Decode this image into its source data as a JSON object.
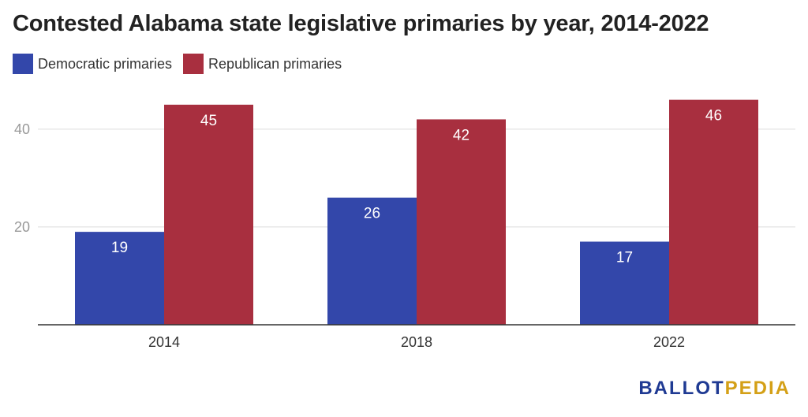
{
  "chart_data": {
    "type": "bar",
    "title": "Contested Alabama state legislative primaries by year, 2014-2022",
    "categories": [
      "2014",
      "2018",
      "2022"
    ],
    "series": [
      {
        "name": "Democratic primaries",
        "color": "#3347AA",
        "values": [
          19,
          26,
          17
        ]
      },
      {
        "name": "Republican primaries",
        "color": "#A82F3F",
        "values": [
          45,
          42,
          46
        ]
      }
    ],
    "ylim": [
      0,
      49
    ],
    "yticks": [
      20,
      40
    ],
    "grid": true,
    "legend_position": "top-left",
    "data_labels": true
  },
  "logo": {
    "part1": "BALLOT",
    "part2": "PEDIA"
  }
}
